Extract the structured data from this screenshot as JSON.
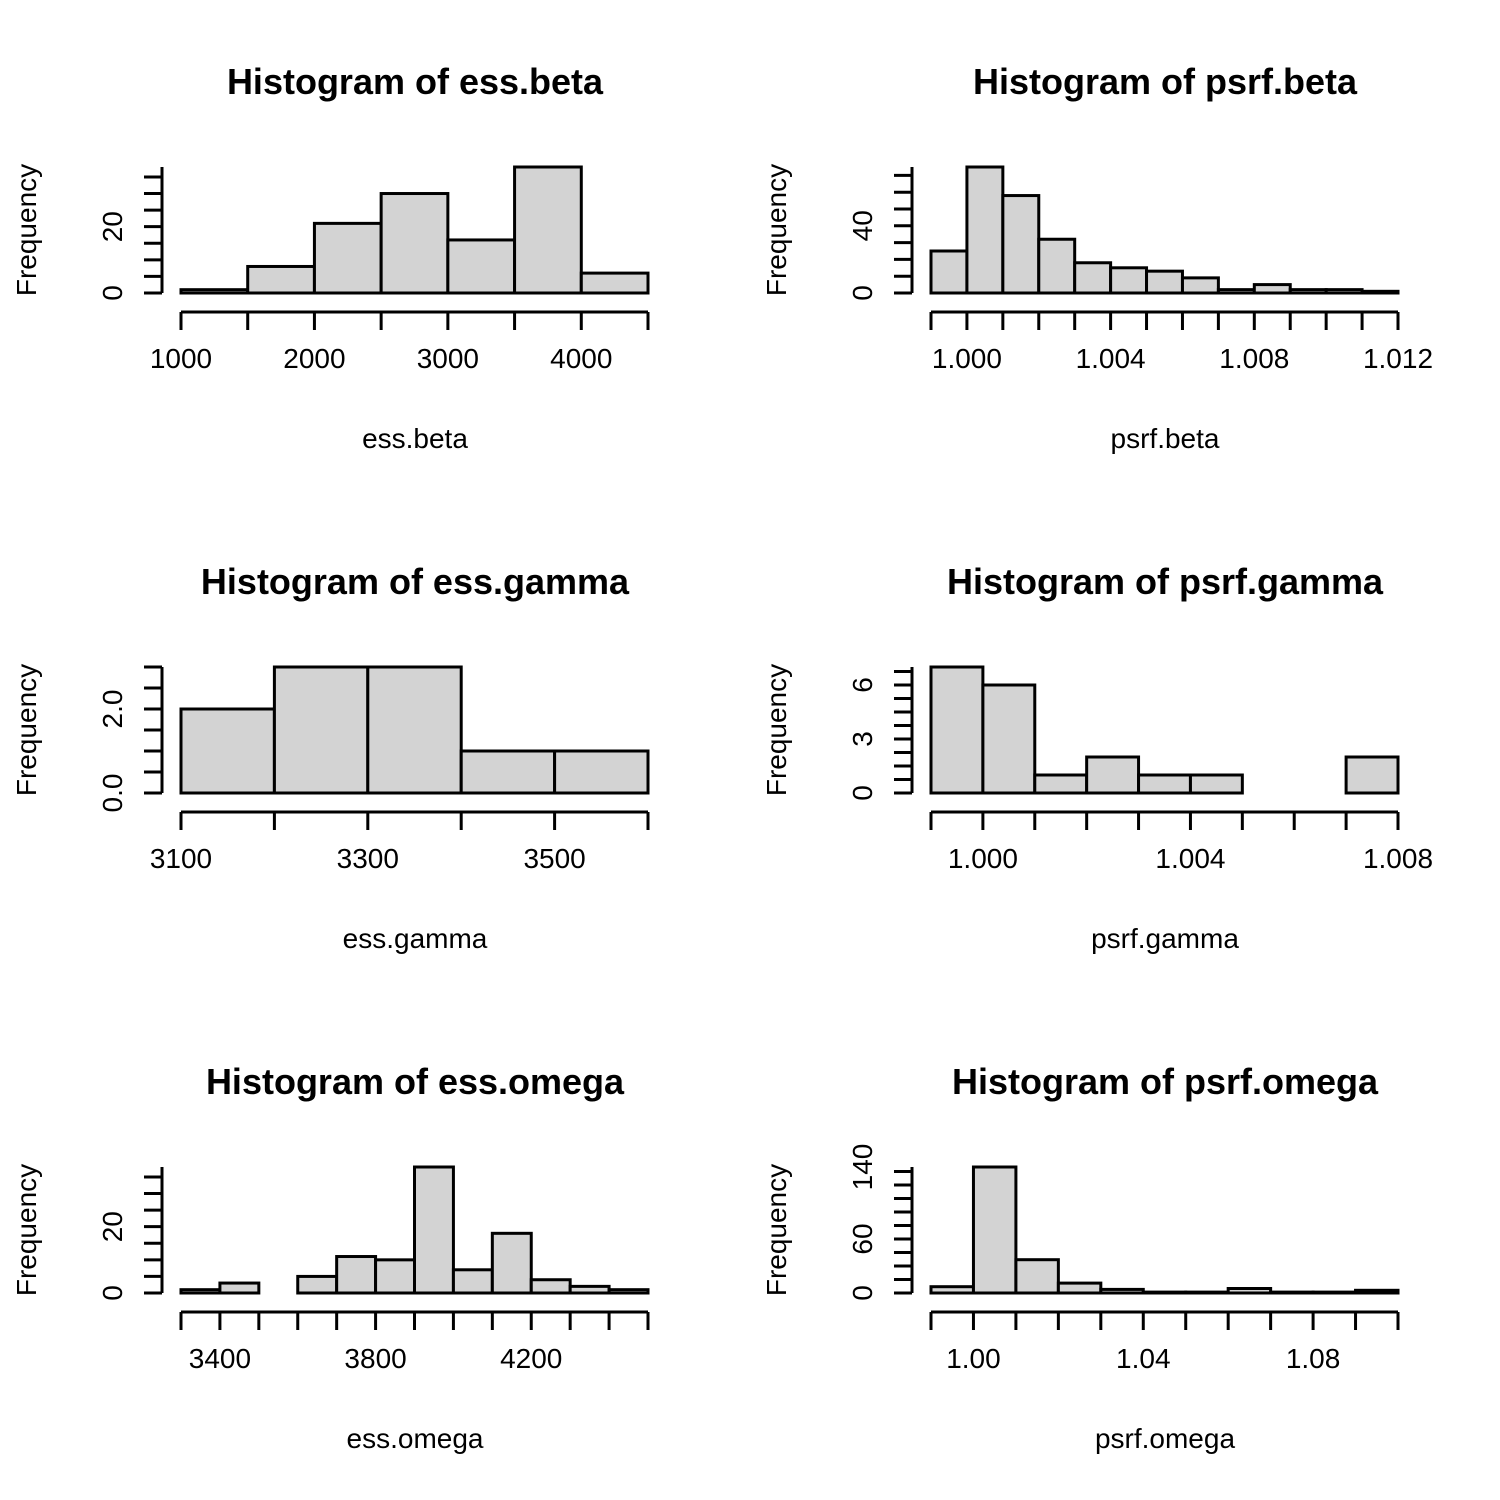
{
  "chart_data": [
    {
      "type": "bar",
      "title": "Histogram of ess.beta",
      "xlabel": "ess.beta",
      "ylabel": "Frequency",
      "breaks": [
        1000,
        1500,
        2000,
        2500,
        3000,
        3500,
        4000,
        4500
      ],
      "counts": [
        1,
        8,
        21,
        30,
        16,
        38,
        6
      ],
      "xticks": [
        1000,
        2000,
        3000,
        4000
      ],
      "yticks": [
        0,
        20
      ],
      "ylim": [
        0,
        38
      ]
    },
    {
      "type": "bar",
      "title": "Histogram of psrf.beta",
      "xlabel": "psrf.beta",
      "ylabel": "Frequency",
      "breaks": [
        0.999,
        1.0,
        1.001,
        1.002,
        1.003,
        1.004,
        1.005,
        1.006,
        1.007,
        1.008,
        1.009,
        1.01,
        1.011,
        1.012
      ],
      "counts": [
        25,
        75,
        58,
        32,
        18,
        15,
        13,
        9,
        2,
        5,
        2,
        2,
        1
      ],
      "xticks": [
        1.0,
        1.004,
        1.008,
        1.012
      ],
      "xtick_labels": [
        "1.000",
        "1.004",
        "1.008",
        "1.012"
      ],
      "yticks": [
        0,
        40
      ],
      "ylim": [
        0,
        75
      ]
    },
    {
      "type": "bar",
      "title": "Histogram of ess.gamma",
      "xlabel": "ess.gamma",
      "ylabel": "Frequency",
      "breaks": [
        3100,
        3200,
        3300,
        3400,
        3500,
        3600
      ],
      "counts": [
        2,
        3,
        3,
        1,
        1
      ],
      "xticks": [
        3100,
        3300,
        3500
      ],
      "yticks": [
        0,
        2
      ],
      "ytick_labels": [
        "0.0",
        "2.0"
      ],
      "ylim": [
        0,
        3
      ]
    },
    {
      "type": "bar",
      "title": "Histogram of psrf.gamma",
      "xlabel": "psrf.gamma",
      "ylabel": "Frequency",
      "breaks": [
        0.999,
        1.0,
        1.001,
        1.002,
        1.003,
        1.004,
        1.005,
        1.006,
        1.007,
        1.008
      ],
      "counts": [
        7,
        6,
        1,
        2,
        1,
        1,
        0,
        0,
        2
      ],
      "xticks": [
        1.0,
        1.004,
        1.008
      ],
      "xtick_labels": [
        "1.000",
        "1.004",
        "1.008"
      ],
      "yticks": [
        0,
        3,
        6
      ],
      "ylim": [
        0,
        7
      ]
    },
    {
      "type": "bar",
      "title": "Histogram of ess.omega",
      "xlabel": "ess.omega",
      "ylabel": "Frequency",
      "breaks": [
        3300,
        3400,
        3500,
        3600,
        3700,
        3800,
        3900,
        4000,
        4100,
        4200,
        4300,
        4400,
        4500
      ],
      "counts": [
        1,
        3,
        0,
        5,
        11,
        10,
        38,
        7,
        18,
        4,
        2,
        1
      ],
      "xticks": [
        3400,
        3800,
        4200
      ],
      "yticks": [
        0,
        20
      ],
      "ylim": [
        0,
        38
      ]
    },
    {
      "type": "bar",
      "title": "Histogram of psrf.omega",
      "xlabel": "psrf.omega",
      "ylabel": "Frequency",
      "breaks": [
        0.99,
        1.0,
        1.01,
        1.02,
        1.03,
        1.04,
        1.05,
        1.06,
        1.07,
        1.08,
        1.09,
        1.1
      ],
      "counts": [
        7,
        140,
        37,
        11,
        4,
        1,
        1,
        5,
        1,
        1,
        3
      ],
      "xticks": [
        1.0,
        1.04,
        1.08
      ],
      "xtick_labels": [
        "1.00",
        "1.04",
        "1.08"
      ],
      "yticks": [
        0,
        60,
        140
      ],
      "ylim": [
        0,
        140
      ]
    }
  ]
}
